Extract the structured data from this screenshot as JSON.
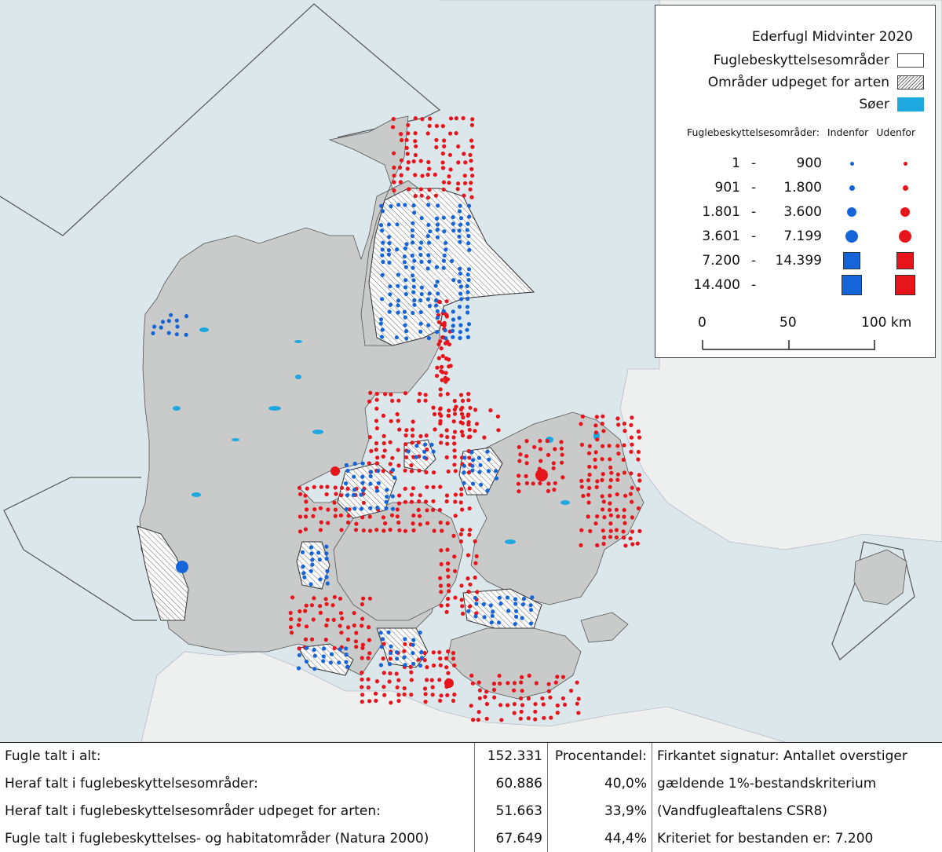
{
  "legend": {
    "title": "Ederfugl Midvinter 2020",
    "layers": [
      {
        "label": "Fuglebeskyttelsesområder",
        "style": "plain"
      },
      {
        "label": "Områder udpeget for arten",
        "style": "hatch"
      },
      {
        "label": "Søer",
        "style": "lake"
      }
    ],
    "column_header": "Fuglebeskyttelsesområder:",
    "inside_label": "Indenfor",
    "outside_label": "Udenfor",
    "ranges": [
      {
        "lo": "1",
        "dash": "-",
        "hi": "900",
        "shape": "circle",
        "size": 2
      },
      {
        "lo": "901",
        "dash": "-",
        "hi": "1.800",
        "shape": "circle",
        "size": 3
      },
      {
        "lo": "1.801",
        "dash": "-",
        "hi": "3.600",
        "shape": "circle",
        "size": 4
      },
      {
        "lo": "3.601",
        "dash": "-",
        "hi": "7.199",
        "shape": "circle",
        "size": 5
      },
      {
        "lo": "7.200",
        "dash": "-",
        "hi": "14.399",
        "shape": "square",
        "size": 6
      },
      {
        "lo": "14.400",
        "dash": "-",
        "hi": "",
        "shape": "square",
        "size": 7
      }
    ],
    "inside_color": "#1565d8",
    "outside_color": "#e8141c",
    "scale_labels": [
      "0",
      "50",
      "100 km"
    ]
  },
  "stats": {
    "rows": [
      {
        "label": "Fugle talt i alt:",
        "count": "152.331",
        "pct": "Procentandel:",
        "note": "Firkantet signatur: Antallet overstiger"
      },
      {
        "label": "Heraf talt i fuglebeskyttelsesområder:",
        "count": "60.886",
        "pct": "40,0%",
        "note": "gældende 1%-bestandskriterium"
      },
      {
        "label": "Heraf talt i fuglebeskyttelsesområder udpeget for arten:",
        "count": "51.663",
        "pct": "33,9%",
        "note": "(Vandfugleaftalens CSR8)"
      },
      {
        "label": "Fugle talt i fuglebeskyttelses- og habitatområder (Natura 2000)",
        "count": "67.649",
        "pct": "44,4%",
        "note": "Kriteriet for bestanden er: 7.200"
      }
    ]
  },
  "colors": {
    "sea": "#dbe7eb",
    "land_denmark": "#c8cbca",
    "land_other": "#eef0ef",
    "lake": "#1ea8e0"
  }
}
